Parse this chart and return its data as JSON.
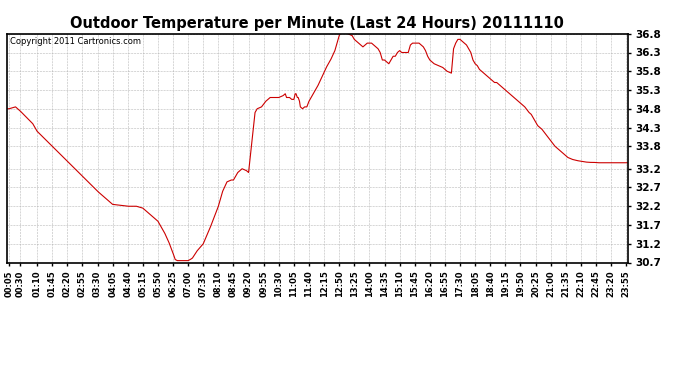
{
  "title": "Outdoor Temperature per Minute (Last 24 Hours) 20111110",
  "copyright_text": "Copyright 2011 Cartronics.com",
  "line_color": "#cc0000",
  "background_color": "#ffffff",
  "plot_bg_color": "#ffffff",
  "grid_color": "#b0b0b0",
  "ylim": [
    30.7,
    36.8
  ],
  "yticks": [
    30.7,
    31.2,
    31.7,
    32.2,
    32.7,
    33.2,
    33.8,
    34.3,
    34.8,
    35.3,
    35.8,
    36.3,
    36.8
  ],
  "xtick_labels": [
    "00:05",
    "00:30",
    "01:10",
    "01:45",
    "02:20",
    "02:55",
    "03:30",
    "04:05",
    "04:40",
    "05:15",
    "05:50",
    "06:25",
    "07:00",
    "07:35",
    "08:10",
    "08:45",
    "09:20",
    "09:55",
    "10:30",
    "11:05",
    "11:40",
    "12:15",
    "12:50",
    "13:25",
    "14:00",
    "14:35",
    "15:10",
    "15:45",
    "16:20",
    "16:55",
    "17:30",
    "18:05",
    "18:40",
    "19:15",
    "19:50",
    "20:25",
    "21:00",
    "21:35",
    "22:10",
    "22:45",
    "23:20",
    "23:55"
  ],
  "data_x_minutes": [
    5,
    30,
    70,
    105,
    140,
    175,
    210,
    245,
    280,
    315,
    350,
    385,
    420,
    455,
    490,
    525,
    560,
    595,
    630,
    665,
    700,
    735,
    770,
    805,
    840,
    875,
    910,
    945,
    980,
    1015,
    1050,
    1085,
    1120,
    1155,
    1190,
    1225,
    1260,
    1295,
    1330,
    1365,
    1400,
    1435
  ],
  "data_y": [
    34.8,
    34.75,
    34.4,
    34.1,
    33.7,
    33.3,
    32.9,
    32.5,
    32.2,
    32.2,
    32.1,
    31.8,
    31.5,
    31.2,
    30.9,
    30.75,
    30.75,
    30.75,
    30.75,
    30.75,
    30.8,
    31.1,
    31.7,
    32.6,
    32.85,
    33.15,
    33.15,
    34.75,
    34.85,
    35.1,
    35.15,
    35.1,
    35.05,
    35.1,
    35.0,
    34.85,
    35.15,
    35.4,
    35.8,
    36.3,
    36.85,
    36.7,
    36.6,
    36.5,
    36.5,
    36.55,
    36.4,
    36.1,
    36.4,
    36.55,
    36.5,
    36.3,
    36.15,
    36.35,
    36.5,
    36.6,
    36.1,
    36.05,
    36.2,
    36.35,
    36.5,
    36.45,
    36.3,
    36.2,
    36.1,
    36.05,
    36.0,
    35.9,
    36.4,
    36.55,
    36.65,
    36.6,
    36.5,
    36.3,
    36.1,
    36.0,
    35.95,
    35.8,
    35.7,
    35.6,
    35.55,
    35.5,
    35.4,
    35.35,
    35.3,
    35.2,
    35.1,
    34.9,
    34.8,
    34.6,
    34.4,
    34.2,
    34.0,
    33.85,
    33.7,
    33.55,
    33.45,
    33.38,
    33.37,
    33.36
  ],
  "n_data": 100
}
